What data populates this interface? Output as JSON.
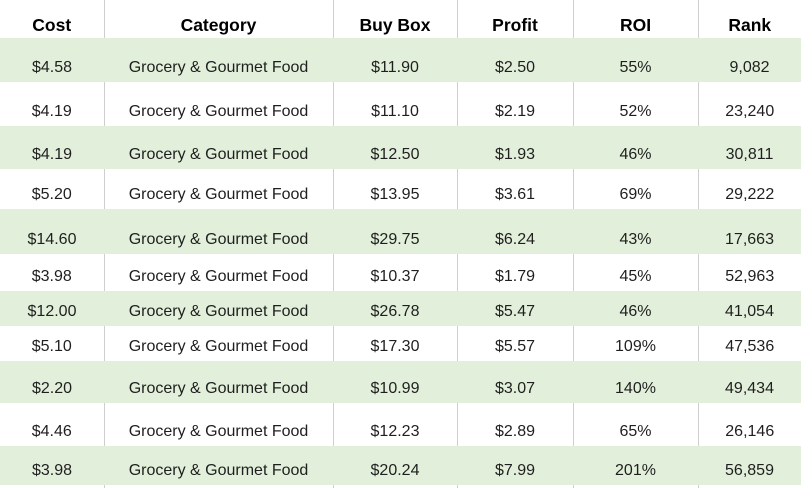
{
  "table": {
    "headers": [
      "Cost",
      "Category",
      "Buy Box",
      "Profit",
      "ROI",
      "Rank"
    ],
    "rows": [
      [
        "$4.58",
        "Grocery & Gourmet Food",
        "$11.90",
        "$2.50",
        "55%",
        "9,082"
      ],
      [
        "$4.19",
        "Grocery & Gourmet Food",
        "$11.10",
        "$2.19",
        "52%",
        "23,240"
      ],
      [
        "$4.19",
        "Grocery & Gourmet Food",
        "$12.50",
        "$1.93",
        "46%",
        "30,811"
      ],
      [
        "$5.20",
        "Grocery & Gourmet Food",
        "$13.95",
        "$3.61",
        "69%",
        "29,222"
      ],
      [
        "$14.60",
        "Grocery & Gourmet Food",
        "$29.75",
        "$6.24",
        "43%",
        "17,663"
      ],
      [
        "$3.98",
        "Grocery & Gourmet Food",
        "$10.37",
        "$1.79",
        "45%",
        "52,963"
      ],
      [
        "$12.00",
        "Grocery & Gourmet Food",
        "$26.78",
        "$5.47",
        "46%",
        "41,054"
      ],
      [
        "$5.10",
        "Grocery & Gourmet Food",
        "$17.30",
        "$5.57",
        "109%",
        "47,536"
      ],
      [
        "$2.20",
        "Grocery & Gourmet Food",
        "$10.99",
        "$3.07",
        "140%",
        "49,434"
      ],
      [
        "$4.46",
        "Grocery & Gourmet Food",
        "$12.23",
        "$2.89",
        "65%",
        "26,146"
      ],
      [
        "$3.98",
        "Grocery & Gourmet Food",
        "$20.24",
        "$7.99",
        "201%",
        "56,859"
      ]
    ]
  },
  "colors": {
    "background": "#ffffff",
    "row_band_green": "#e2efda",
    "gridline": "#cfcfcf",
    "header_text": "#000000",
    "body_text": "#1f1f1f"
  }
}
